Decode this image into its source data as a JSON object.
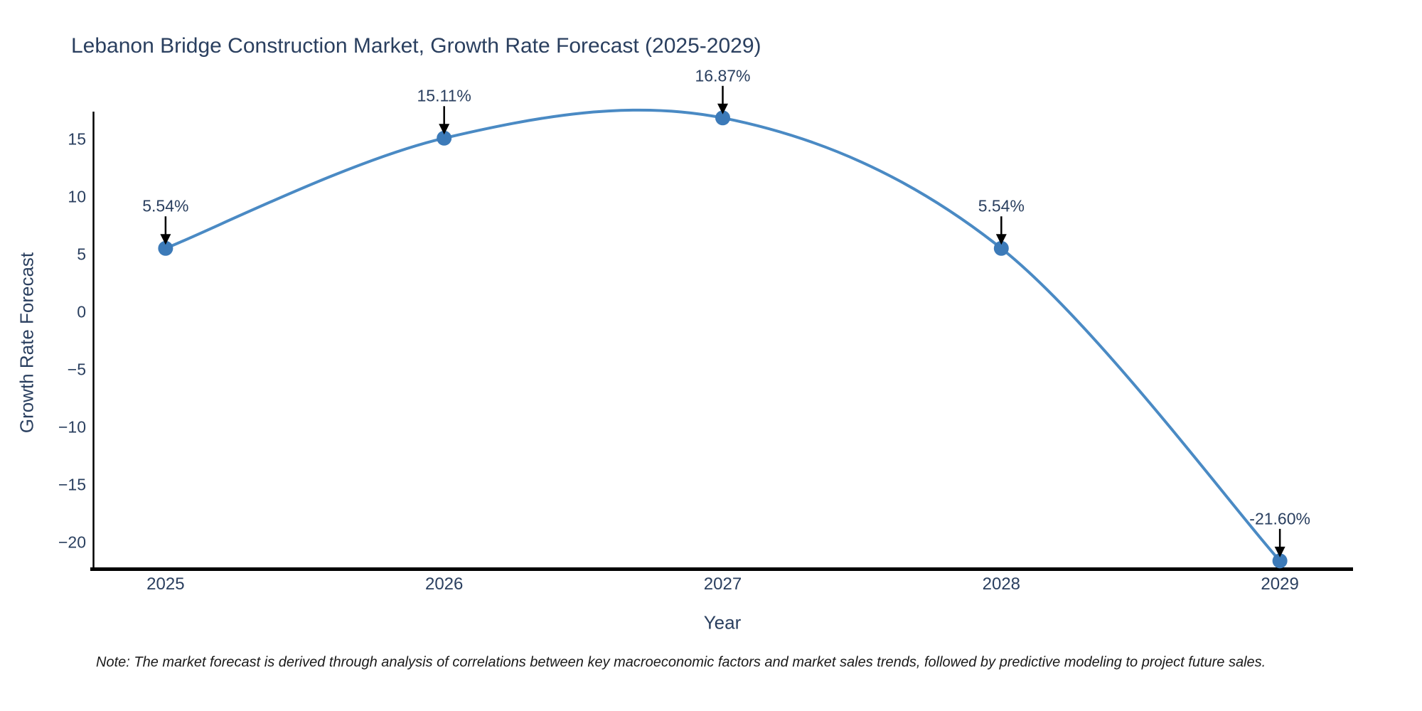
{
  "note": {
    "text": "Note: The market forecast is derived through analysis of correlations between key macroeconomic factors and market sales trends, followed by predictive modeling to project future sales."
  },
  "chart_data": {
    "type": "line",
    "title": "Lebanon Bridge Construction Market, Growth Rate Forecast (2025-2029)",
    "xlabel": "Year",
    "ylabel": "Growth Rate Forecast",
    "x": [
      2025,
      2026,
      2027,
      2028,
      2029
    ],
    "y": [
      5.54,
      15.11,
      16.87,
      5.54,
      -21.6
    ],
    "point_labels": [
      "5.54%",
      "15.11%",
      "16.87%",
      "5.54%",
      "-21.60%"
    ],
    "xtick_labels": [
      "2025",
      "2026",
      "2027",
      "2028",
      "2029"
    ],
    "ytick_values": [
      15,
      10,
      5,
      0,
      -5,
      -10,
      -15,
      -20
    ],
    "ytick_labels": [
      "15",
      "10",
      "5",
      "0",
      "−5",
      "−10",
      "−15",
      "−20"
    ],
    "xlim": [
      2024.74,
      2029.26
    ],
    "ylim": [
      -22.35,
      17.35
    ],
    "grid": false,
    "legend": "none",
    "line_shape": "spline",
    "markers": true,
    "annotation_style": "value label above each point with black down arrow",
    "colors": {
      "line": "#4a8ac4",
      "marker": "#3c7ab8",
      "text": "#2a3f5f",
      "arrow": "#000000",
      "spine": "#000000"
    }
  }
}
